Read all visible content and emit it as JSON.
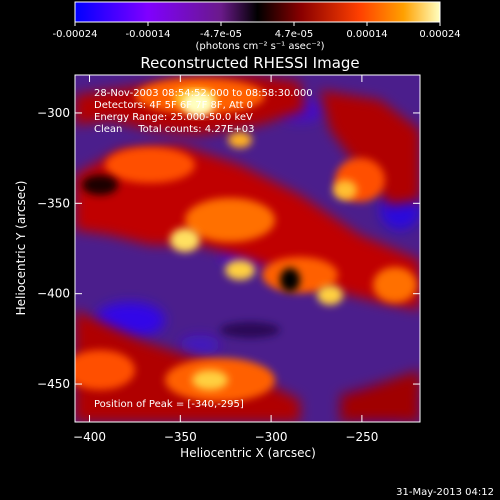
{
  "colorbar": {
    "ticks": [
      "-0.00024",
      "-0.00014",
      "-4.7e-05",
      "4.7e-05",
      "0.00014",
      "0.00024"
    ],
    "unit_label": "(photons cm⁻² s⁻¹ asec⁻²)"
  },
  "title": "Reconstructed RHESSI Image",
  "info": {
    "line1": "28-Nov-2003 08:54:52.000 to 08:58:30.000",
    "line2": "Detectors: 4F 5F 6F 7F 8F, Att 0",
    "line3": "Energy Range: 25.000-50.0 keV",
    "line4": "Clean     Total counts: 4.27E+03",
    "peak": "Position of Peak = [-340,-295]"
  },
  "footer_date": "31-May-2013 04:12",
  "chart_data": {
    "type": "heatmap",
    "title": "Reconstructed RHESSI Image",
    "xlabel": "Heliocentric X (arcsec)",
    "ylabel": "Heliocentric Y (arcsec)",
    "xlim": [
      -408,
      -218
    ],
    "ylim": [
      -471,
      -279
    ],
    "x_ticks": [
      -400,
      -350,
      -300,
      -250
    ],
    "y_ticks": [
      -300,
      -350,
      -400,
      -450
    ],
    "x_tick_labels": [
      "−400",
      "−350",
      "−300",
      "−250"
    ],
    "y_tick_labels": [
      "−300",
      "−350",
      "−400",
      "−450"
    ],
    "colorbar_range": [
      -0.00024,
      0.00024
    ],
    "colormap": [
      "#0000ff",
      "#8000ff",
      "#6a1a8a",
      "#000000",
      "#8a0000",
      "#ff4000",
      "#ffa000",
      "#ffffc0"
    ],
    "peak_position": [
      -340,
      -295
    ]
  }
}
